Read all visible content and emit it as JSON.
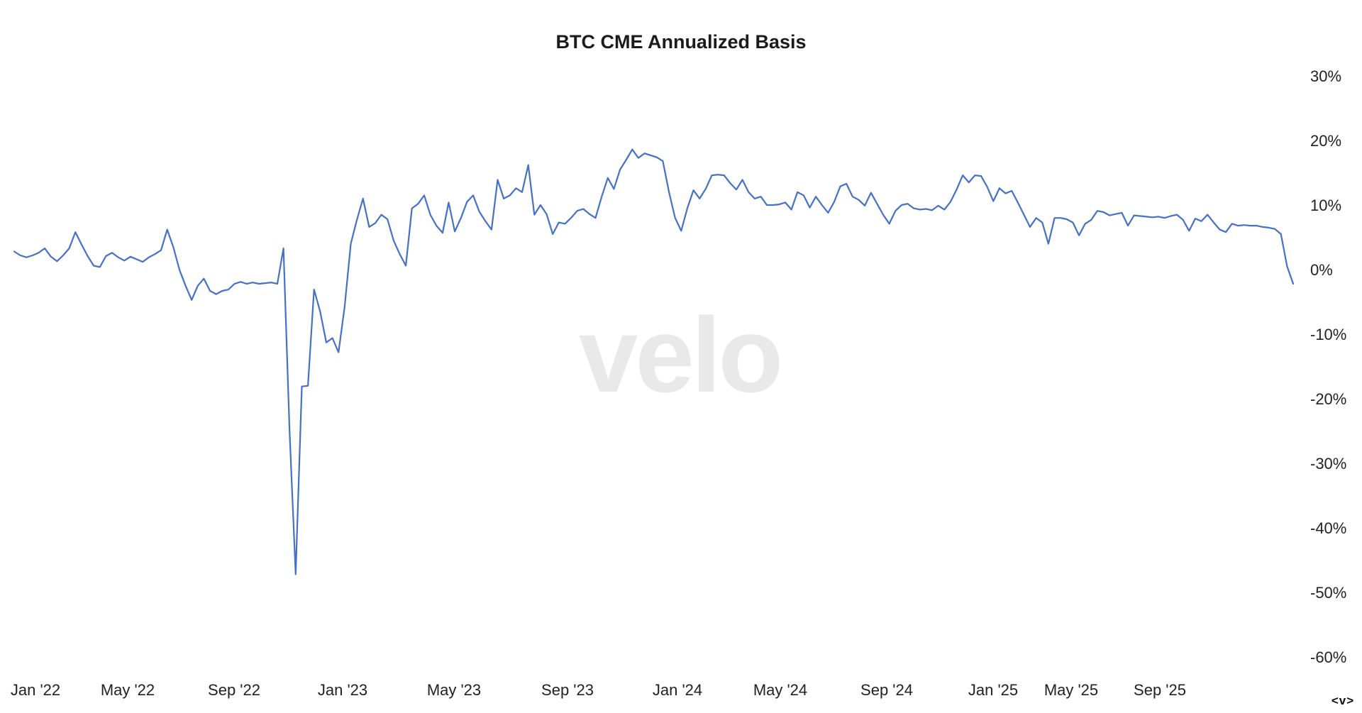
{
  "title": "BTC CME Annualized Basis",
  "watermark": "velo",
  "logo_mark": "<v>",
  "colors": {
    "background": "#ffffff",
    "line": "#4570c8",
    "title": "#1b1b1b",
    "tick_label": "#222222",
    "watermark": "#e9e9e9"
  },
  "chart_data": {
    "type": "line",
    "title": "BTC CME Annualized Basis",
    "series_name": "BTC CME Annualized Basis",
    "unit": "percent",
    "grid": false,
    "legend": "none",
    "ylim": [
      -60,
      30
    ],
    "y_axis_side": "right",
    "y_ticks": [
      "30%",
      "20%",
      "10%",
      "0%",
      "-10%",
      "-20%",
      "-30%",
      "-40%",
      "-50%",
      "-60%"
    ],
    "y_tick_values": [
      30,
      20,
      10,
      0,
      -10,
      -20,
      -30,
      -40,
      -50,
      -60
    ],
    "x_ticks": [
      "Jan '22",
      "May '22",
      "Sep '22",
      "Jan '23",
      "May '23",
      "Sep '23",
      "Jan '24",
      "May '24",
      "Sep '24",
      "Jan '25",
      "May '25",
      "Sep '25"
    ],
    "start_date": "2021-12-27",
    "interval_days": 7,
    "values": [
      2.8,
      2.2,
      1.9,
      2.2,
      2.6,
      3.3,
      2.0,
      1.3,
      2.2,
      3.3,
      5.8,
      3.9,
      2.1,
      0.6,
      0.4,
      2.1,
      2.6,
      1.9,
      1.4,
      2.0,
      1.6,
      1.2,
      1.9,
      2.4,
      3.0,
      6.2,
      3.5,
      0.0,
      -2.5,
      -4.7,
      -2.5,
      -1.4,
      -3.3,
      -3.8,
      -3.3,
      -3.1,
      -2.2,
      -1.9,
      -2.2,
      -2.0,
      -2.2,
      -2.1,
      -2.0,
      -2.2,
      3.3,
      -25.0,
      -47.2,
      -18.1,
      -18.0,
      -3.1,
      -6.5,
      -11.3,
      -10.6,
      -12.8,
      -5.8,
      4.0,
      7.7,
      11.0,
      6.6,
      7.2,
      8.5,
      7.8,
      4.5,
      2.4,
      0.6,
      9.5,
      10.2,
      11.5,
      8.5,
      6.8,
      5.7,
      10.4,
      5.9,
      8.0,
      10.5,
      11.5,
      9.0,
      7.5,
      6.2,
      13.9,
      11.0,
      11.5,
      12.6,
      12.0,
      16.2,
      8.5,
      10.0,
      8.6,
      5.5,
      7.3,
      7.1,
      8.0,
      9.1,
      9.4,
      8.6,
      8.0,
      11.3,
      14.2,
      12.5,
      15.5,
      17.0,
      18.6,
      17.3,
      18.0,
      17.7,
      17.4,
      16.8,
      12.0,
      8.0,
      6.0,
      9.5,
      12.3,
      11.0,
      12.5,
      14.6,
      14.7,
      14.6,
      13.4,
      12.4,
      13.9,
      12.0,
      11.0,
      11.3,
      10.0,
      10.0,
      10.1,
      10.4,
      9.3,
      12.0,
      11.5,
      9.6,
      11.3,
      10.0,
      8.8,
      10.5,
      12.9,
      13.3,
      11.3,
      10.8,
      9.9,
      11.9,
      10.2,
      8.5,
      7.1,
      9.1,
      10.0,
      10.2,
      9.5,
      9.3,
      9.4,
      9.2,
      9.9,
      9.3,
      10.5,
      12.4,
      14.6,
      13.5,
      14.6,
      14.5,
      12.8,
      10.6,
      12.6,
      11.8,
      12.2,
      10.4,
      8.5,
      6.6,
      8.0,
      7.3,
      4.0,
      8.0,
      8.0,
      7.8,
      7.3,
      5.3,
      7.1,
      7.7,
      9.1,
      8.9,
      8.4,
      8.6,
      8.8,
      6.8,
      8.4,
      8.3,
      8.2,
      8.1,
      8.2,
      8.0,
      8.3,
      8.5,
      7.7,
      6.0,
      7.9,
      7.5,
      8.5,
      7.3,
      6.2,
      5.8,
      7.1,
      6.8,
      6.9,
      6.8,
      6.8,
      6.6,
      6.5,
      6.3,
      5.5,
      0.5,
      -2.2
    ]
  }
}
